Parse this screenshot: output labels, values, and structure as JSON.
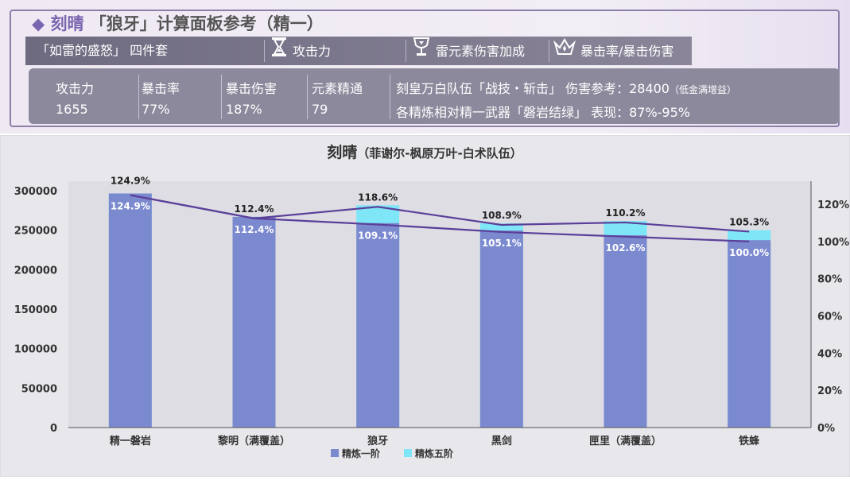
{
  "header": {
    "title_hero": "刻晴",
    "title_rest": "「狼牙」计算面板参考（精一）",
    "set_label": "「如雷的盛怒」 四件套",
    "sands_label": "攻击力",
    "goblet_label": "雷元素伤害加成",
    "circlet_label": "暴击率/暴击伤害",
    "sands_icon": "hourglass-icon",
    "goblet_icon": "goblet-icon",
    "circlet_icon": "crown-icon"
  },
  "stats": [
    {
      "label": "攻击力",
      "value": "1655"
    },
    {
      "label": "暴击率",
      "value": "77%"
    },
    {
      "label": "暴击伤害",
      "value": "187%"
    },
    {
      "label": "元素精通",
      "value": "79"
    }
  ],
  "info": {
    "line1": "刻皇万白队伍「战技・斩击」 伤害参考：28400",
    "line1_note": "（低金满增益）",
    "line2": "各精炼相对精一武器「磐岩结绿」 表现：87%-95%"
  },
  "chart_data": {
    "type": "bar",
    "title": "刻晴",
    "subtitle": "（菲谢尔-枫原万叶-白术队伍）",
    "categories": [
      "精一磐岩",
      "黎明（满覆盖）",
      "狼牙",
      "黑剑",
      "匣里（满覆盖）",
      "铁蜂"
    ],
    "series": [
      {
        "name": "精炼一阶",
        "values": [
          296500,
          266900,
          259000,
          249600,
          243600,
          237400
        ],
        "color": "#7b89cf"
      },
      {
        "name": "精炼五阶",
        "values": [
          296500,
          266900,
          281600,
          258600,
          261700,
          250000
        ],
        "color": "#7ee6f6"
      }
    ],
    "line_series": [
      {
        "name": "精炼一阶",
        "values": [
          124.9,
          112.4,
          109.1,
          105.1,
          102.6,
          100.0
        ],
        "labels": [
          "124.9%",
          "112.4%",
          "109.1%",
          "105.1%",
          "102.6%",
          "100.0%"
        ]
      },
      {
        "name": "精炼五阶",
        "values": [
          124.9,
          112.4,
          118.6,
          108.9,
          110.2,
          105.3
        ],
        "labels": [
          "124.9%",
          "112.4%",
          "118.6%",
          "108.9%",
          "110.2%",
          "105.3%"
        ]
      }
    ],
    "y_left": {
      "min": 0,
      "max": 300000,
      "ticks": [
        "0",
        "50000",
        "100000",
        "150000",
        "200000",
        "250000",
        "300000"
      ]
    },
    "y_right": {
      "min": 0,
      "max": 130,
      "ticks": [
        "0%",
        "20%",
        "40%",
        "60%",
        "80%",
        "100%",
        "120%"
      ],
      "tick_values": [
        0,
        20,
        40,
        60,
        80,
        100,
        120
      ]
    },
    "legend": [
      "精炼一阶",
      "精炼五阶"
    ],
    "legend_position": "bottom",
    "grid": false
  }
}
